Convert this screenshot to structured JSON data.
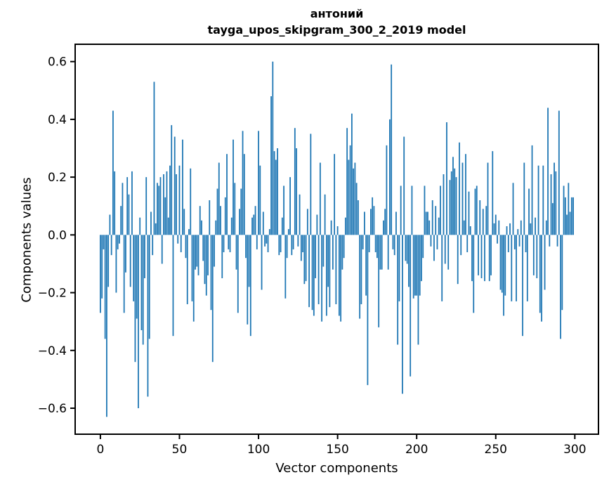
{
  "figure": {
    "background": "#ffffff",
    "spine_color": "#000000",
    "text_color": "#000000"
  },
  "title": {
    "line1": "антоний",
    "line2": "tayga_upos_skipgram_300_2_2019 model"
  },
  "chart_data": {
    "type": "bar",
    "title": "антоний\ntayga_upos_skipgram_300_2_2019 model",
    "xlabel": "Vector components",
    "ylabel": "Components values",
    "bar_color": "#1f77b4",
    "grid": false,
    "legend": null,
    "x_start": 0,
    "bar_width_units": 0.8,
    "xlim": [
      -15.95,
      314.95
    ],
    "ylim": [
      -0.69,
      0.66
    ],
    "xticks": [
      0,
      50,
      100,
      150,
      200,
      250,
      300
    ],
    "yticks": [
      0.6,
      0.4,
      0.2,
      0.0,
      -0.2,
      -0.4,
      -0.6
    ],
    "values": [
      -0.27,
      -0.22,
      -0.05,
      -0.36,
      -0.63,
      -0.18,
      0.07,
      -0.07,
      0.43,
      0.22,
      -0.2,
      -0.05,
      -0.03,
      0.1,
      0.18,
      -0.27,
      -0.13,
      0.2,
      0.14,
      -0.18,
      0.22,
      -0.23,
      -0.44,
      -0.29,
      -0.6,
      0.06,
      -0.33,
      -0.38,
      -0.15,
      0.2,
      -0.56,
      -0.36,
      0.08,
      -0.07,
      0.53,
      0.04,
      0.18,
      0.17,
      0.2,
      -0.1,
      0.21,
      0.13,
      0.22,
      0.06,
      0.24,
      0.38,
      -0.35,
      0.34,
      0.21,
      -0.03,
      0.24,
      -0.06,
      0.33,
      0.09,
      -0.08,
      -0.24,
      0.02,
      0.23,
      -0.23,
      -0.3,
      -0.12,
      -0.11,
      -0.14,
      0.1,
      0.05,
      -0.09,
      -0.17,
      -0.21,
      -0.14,
      0.12,
      -0.26,
      -0.44,
      -0.11,
      0.05,
      0.16,
      0.25,
      0.1,
      -0.15,
      -0.06,
      0.13,
      0.28,
      -0.05,
      -0.06,
      0.06,
      0.33,
      0.18,
      -0.12,
      -0.27,
      0.09,
      0.16,
      0.36,
      0.28,
      -0.08,
      -0.31,
      -0.18,
      -0.35,
      0.06,
      0.07,
      0.1,
      -0.05,
      0.36,
      0.24,
      -0.19,
      0.08,
      -0.04,
      -0.03,
      -0.06,
      0.02,
      0.48,
      0.6,
      0.29,
      0.26,
      0.3,
      -0.07,
      -0.06,
      0.06,
      0.17,
      -0.22,
      -0.08,
      0.02,
      0.2,
      -0.07,
      -0.05,
      0.37,
      0.3,
      -0.04,
      0.14,
      -0.09,
      -0.06,
      -0.17,
      -0.16,
      0.09,
      -0.25,
      0.35,
      -0.26,
      -0.28,
      -0.15,
      0.07,
      -0.24,
      0.25,
      -0.3,
      -0.11,
      0.14,
      -0.28,
      -0.18,
      -0.25,
      0.05,
      -0.12,
      0.28,
      -0.24,
      0.03,
      -0.28,
      -0.3,
      -0.12,
      -0.08,
      0.06,
      0.37,
      0.26,
      0.31,
      0.42,
      0.23,
      0.25,
      0.18,
      0.12,
      -0.29,
      -0.24,
      -0.05,
      0.08,
      -0.21,
      -0.52,
      -0.06,
      0.09,
      0.13,
      0.1,
      -0.06,
      -0.08,
      -0.32,
      -0.12,
      -0.12,
      0.05,
      0.09,
      0.31,
      -0.12,
      0.4,
      0.59,
      -0.05,
      -0.07,
      0.08,
      -0.38,
      -0.23,
      0.17,
      -0.55,
      0.34,
      -0.09,
      -0.1,
      -0.18,
      -0.49,
      0.17,
      -0.22,
      -0.21,
      -0.21,
      -0.38,
      -0.21,
      -0.16,
      -0.08,
      0.17,
      0.08,
      0.08,
      0.05,
      -0.04,
      0.12,
      -0.09,
      0.1,
      -0.05,
      0.06,
      0.17,
      -0.23,
      0.21,
      -0.1,
      0.39,
      -0.12,
      0.19,
      0.22,
      0.27,
      0.23,
      0.2,
      -0.17,
      0.32,
      -0.07,
      0.25,
      0.05,
      0.28,
      -0.06,
      0.15,
      0.03,
      -0.16,
      -0.27,
      0.16,
      0.17,
      -0.14,
      0.12,
      -0.15,
      0.09,
      -0.16,
      0.1,
      0.25,
      -0.16,
      -0.14,
      0.29,
      0.04,
      0.07,
      -0.03,
      0.05,
      -0.19,
      -0.2,
      -0.28,
      -0.21,
      0.03,
      -0.06,
      0.04,
      -0.23,
      0.18,
      -0.05,
      -0.23,
      0.02,
      -0.04,
      0.05,
      -0.35,
      0.25,
      -0.06,
      -0.23,
      0.16,
      0.04,
      0.31,
      -0.14,
      0.06,
      -0.15,
      0.24,
      -0.27,
      -0.3,
      0.24,
      -0.19,
      0.05,
      0.44,
      -0.04,
      0.21,
      0.11,
      0.25,
      0.22,
      -0.04,
      0.43,
      -0.36,
      -0.26,
      0.17,
      0.13,
      0.07,
      0.18,
      0.08,
      0.13,
      0.13
    ]
  }
}
